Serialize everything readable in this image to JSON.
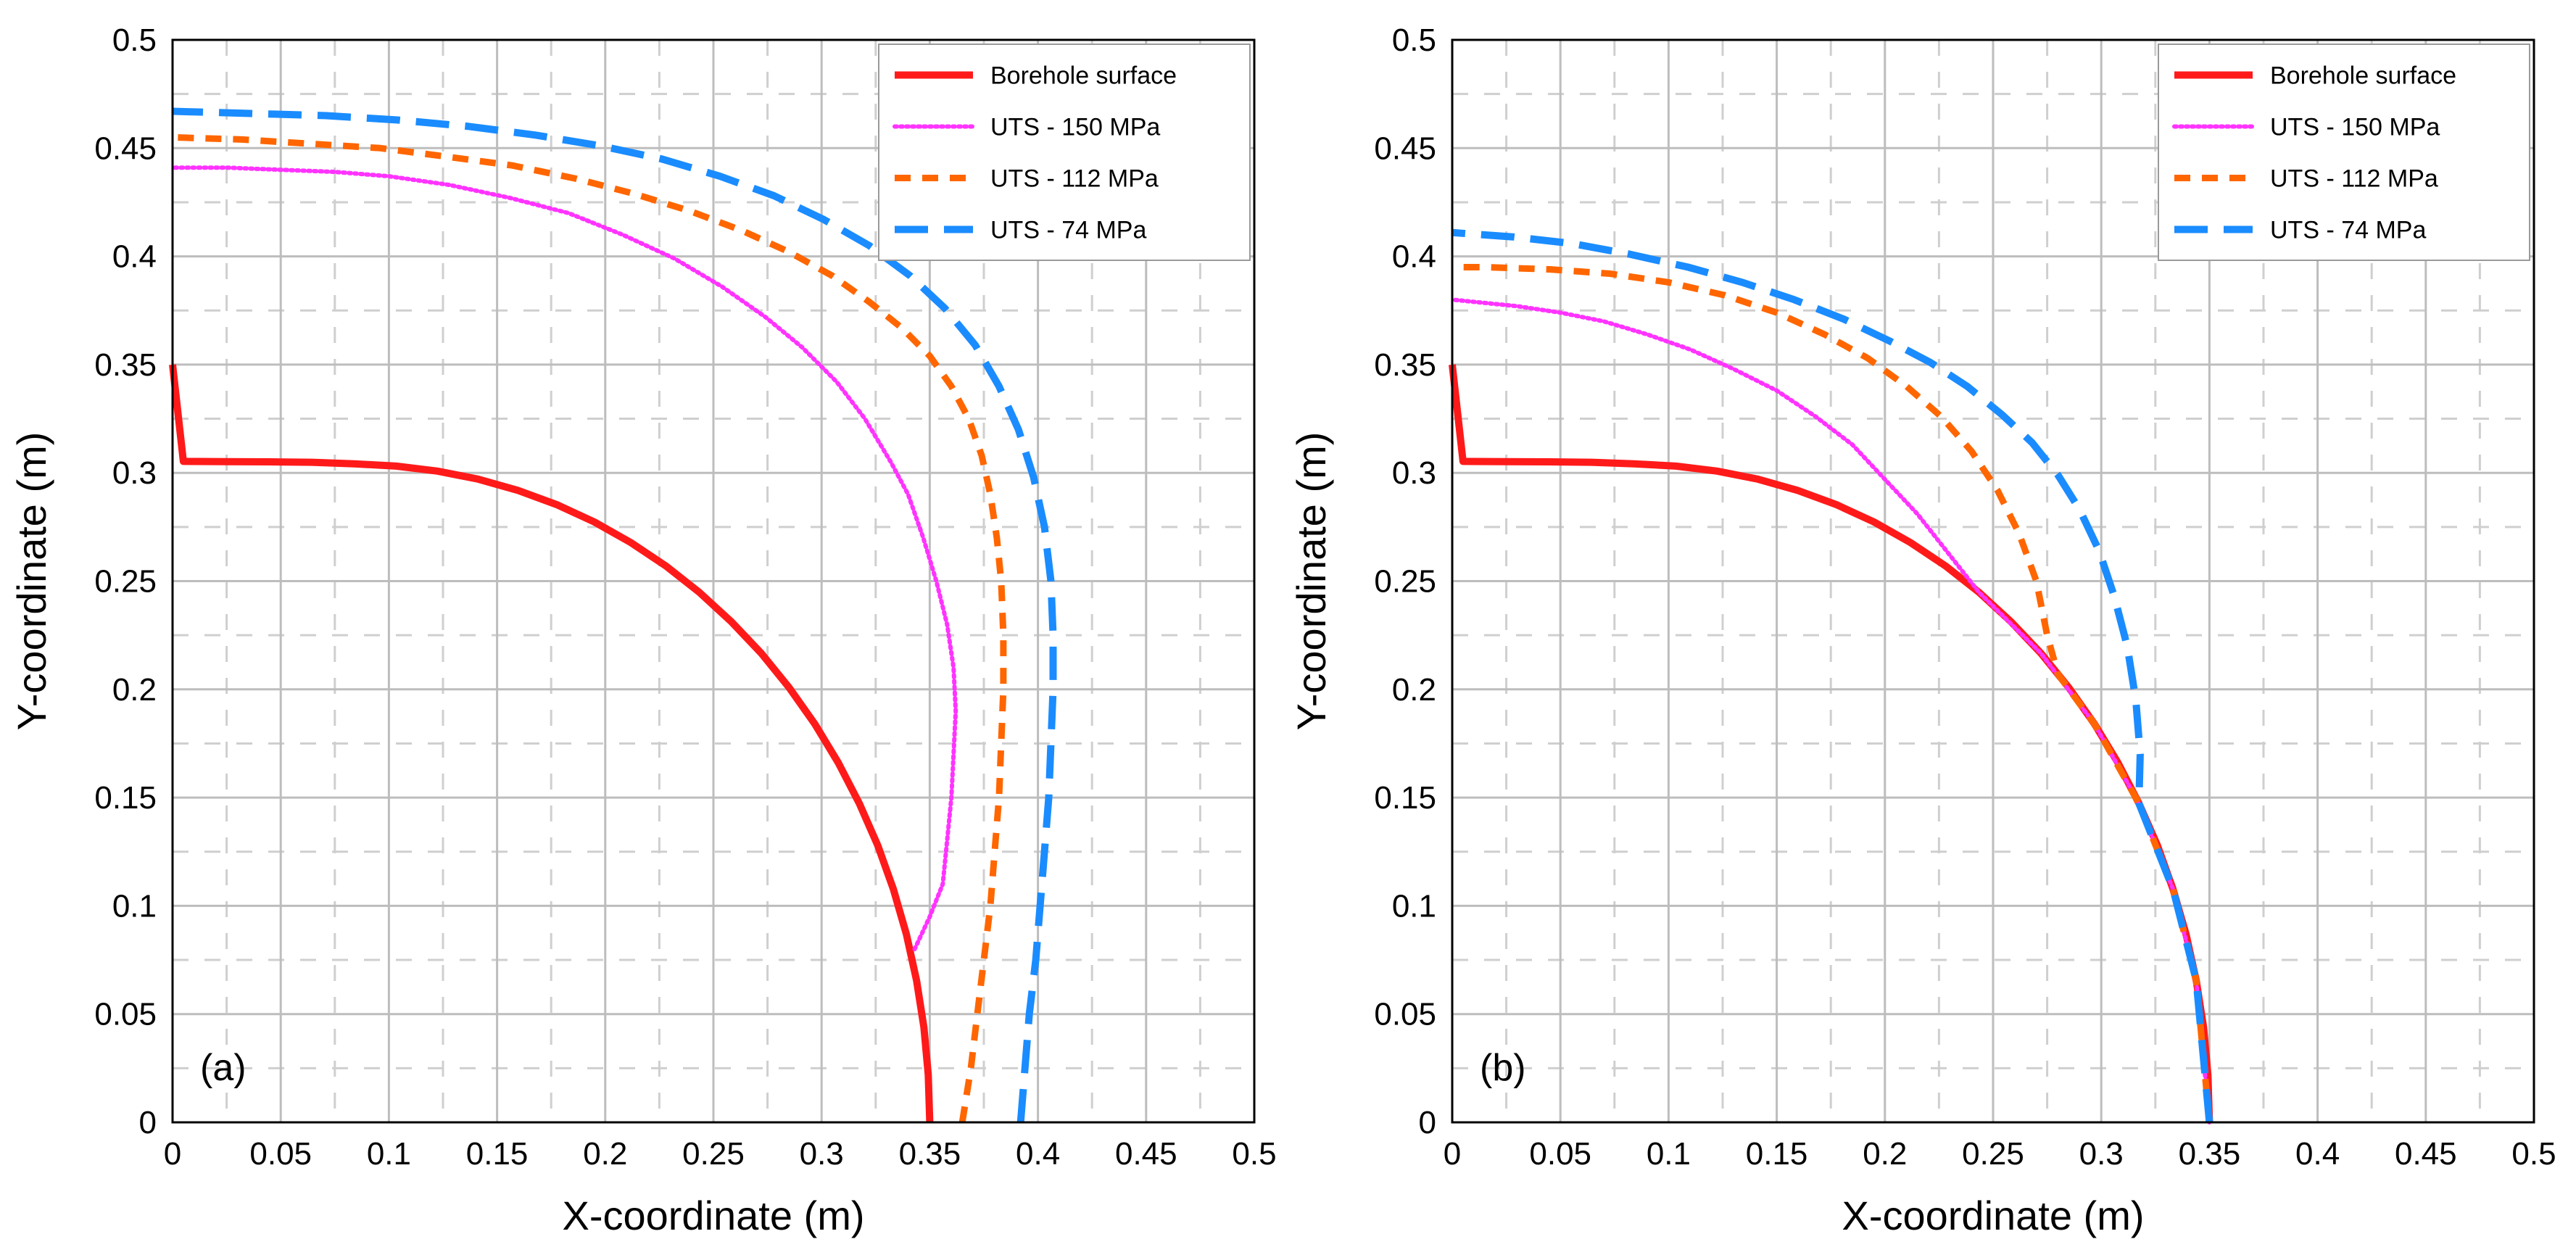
{
  "figure": {
    "panels_order": [
      "a",
      "b"
    ]
  },
  "chart_data": [
    {
      "type": "line",
      "panel_label": "(a)",
      "xlabel": "X-coordinate (m)",
      "ylabel": "Y-coordinate (m)",
      "xlim": [
        0,
        0.5
      ],
      "ylim": [
        0,
        0.5
      ],
      "xticks": [
        "0",
        "0.05",
        "0.1",
        "0.15",
        "0.2",
        "0.25",
        "0.3",
        "0.35",
        "0.4",
        "0.45",
        "0.5"
      ],
      "yticks": [
        "0",
        "0.05",
        "0.1",
        "0.15",
        "0.2",
        "0.25",
        "0.3",
        "0.35",
        "0.4",
        "0.45",
        "0.5"
      ],
      "grid": true,
      "legend_position": "top-right",
      "series": [
        {
          "name": "Borehole surface",
          "style": "solid",
          "color": "#ff1a1a",
          "x": [
            0.35,
            0.3493,
            0.3473,
            0.3439,
            0.3392,
            0.3332,
            0.326,
            0.3174,
            0.3077,
            0.2969,
            0.285,
            0.2721,
            0.2582,
            0.2435,
            0.228,
            0.2118,
            0.195,
            0.1776,
            0.1597,
            0.1413,
            0.1225,
            0.1034,
            0.084,
            0.0644,
            0.0447,
            0.0249,
            0.005,
            0
          ],
          "y": [
            0,
            0.022,
            0.0439,
            0.0655,
            0.0868,
            0.1076,
            0.1278,
            0.1474,
            0.1661,
            0.184,
            0.2008,
            0.2167,
            0.2313,
            0.2448,
            0.257,
            0.2678,
            0.2773,
            0.2853,
            0.2919,
            0.2971,
            0.3008,
            0.3031,
            0.3042,
            0.3049,
            0.3051,
            0.3052,
            0.3053,
            0.35
          ]
        },
        {
          "name": "UTS - 150 MPa",
          "style": "dotted",
          "color": "#ff33ff",
          "x": [
            0.343,
            0.35,
            0.356,
            0.358,
            0.36,
            0.361,
            0.362,
            0.361,
            0.358,
            0.353,
            0.347,
            0.34,
            0.332,
            0.32,
            0.307,
            0.291,
            0.274,
            0.254,
            0.232,
            0.208,
            0.183,
            0.156,
            0.128,
            0.1,
            0.075,
            0.05,
            0.025,
            0
          ],
          "y": [
            0.08,
            0.095,
            0.11,
            0.13,
            0.15,
            0.17,
            0.19,
            0.21,
            0.23,
            0.25,
            0.27,
            0.29,
            0.305,
            0.325,
            0.342,
            0.358,
            0.372,
            0.386,
            0.399,
            0.41,
            0.42,
            0.427,
            0.433,
            0.437,
            0.439,
            0.44,
            0.441,
            0.441
          ]
        },
        {
          "name": "UTS - 112 MPa",
          "style": "dashed",
          "color": "#ff6600",
          "x": [
            0.365,
            0.369,
            0.372,
            0.375,
            0.378,
            0.38,
            0.382,
            0.383,
            0.384,
            0.384,
            0.383,
            0.381,
            0.378,
            0.374,
            0.368,
            0.36,
            0.35,
            0.337,
            0.322,
            0.305,
            0.285,
            0.263,
            0.239,
            0.213,
            0.186,
            0.157,
            0.127,
            0.096,
            0.064,
            0.032,
            0
          ],
          "y": [
            0,
            0.025,
            0.05,
            0.075,
            0.1,
            0.125,
            0.15,
            0.175,
            0.2,
            0.225,
            0.25,
            0.27,
            0.29,
            0.308,
            0.325,
            0.34,
            0.354,
            0.367,
            0.379,
            0.391,
            0.402,
            0.412,
            0.421,
            0.429,
            0.436,
            0.442,
            0.446,
            0.45,
            0.452,
            0.454,
            0.455
          ]
        },
        {
          "name": "UTS - 74 MPa",
          "style": "longdash",
          "color": "#1a8cff",
          "x": [
            0.392,
            0.394,
            0.396,
            0.399,
            0.401,
            0.403,
            0.405,
            0.406,
            0.407,
            0.407,
            0.406,
            0.403,
            0.398,
            0.391,
            0.382,
            0.371,
            0.357,
            0.341,
            0.322,
            0.301,
            0.278,
            0.253,
            0.226,
            0.198,
            0.168,
            0.137,
            0.104,
            0.071,
            0.036,
            0
          ],
          "y": [
            0,
            0.025,
            0.05,
            0.075,
            0.1,
            0.125,
            0.15,
            0.175,
            0.2,
            0.225,
            0.25,
            0.275,
            0.298,
            0.32,
            0.34,
            0.359,
            0.376,
            0.391,
            0.405,
            0.417,
            0.428,
            0.437,
            0.445,
            0.451,
            0.456,
            0.46,
            0.463,
            0.465,
            0.466,
            0.467
          ]
        }
      ]
    },
    {
      "type": "line",
      "panel_label": "(b)",
      "xlabel": "X-coordinate (m)",
      "ylabel": "Y-coordinate (m)",
      "xlim": [
        0,
        0.5
      ],
      "ylim": [
        0,
        0.5
      ],
      "xticks": [
        "0",
        "0.05",
        "0.1",
        "0.15",
        "0.2",
        "0.25",
        "0.3",
        "0.35",
        "0.4",
        "0.45",
        "0.5"
      ],
      "yticks": [
        "0",
        "0.05",
        "0.1",
        "0.15",
        "0.2",
        "0.25",
        "0.3",
        "0.35",
        "0.4",
        "0.45",
        "0.5"
      ],
      "grid": true,
      "legend_position": "top-right",
      "series": [
        {
          "name": "Borehole surface",
          "style": "solid",
          "color": "#ff1a1a",
          "x": [
            0.35,
            0.3493,
            0.3473,
            0.3439,
            0.3392,
            0.3332,
            0.326,
            0.3174,
            0.3077,
            0.2969,
            0.285,
            0.2721,
            0.2582,
            0.2435,
            0.228,
            0.2118,
            0.195,
            0.1776,
            0.1597,
            0.1413,
            0.1225,
            0.1034,
            0.084,
            0.0644,
            0.0447,
            0.0249,
            0.005,
            0
          ],
          "y": [
            0,
            0.022,
            0.0439,
            0.0655,
            0.0868,
            0.1076,
            0.1278,
            0.1474,
            0.1661,
            0.184,
            0.2008,
            0.2167,
            0.2313,
            0.2448,
            0.257,
            0.2678,
            0.2773,
            0.2853,
            0.2919,
            0.2971,
            0.3008,
            0.3031,
            0.3042,
            0.3049,
            0.3051,
            0.3052,
            0.3053,
            0.35
          ]
        },
        {
          "name": "UTS - 150 MPa",
          "style": "dotted",
          "color": "#ff33ff",
          "x": [
            0.35,
            0.3439,
            0.3332,
            0.3174,
            0.2969,
            0.2721,
            0.2435,
            0.23,
            0.215,
            0.2,
            0.185,
            0.168,
            0.15,
            0.13,
            0.11,
            0.09,
            0.07,
            0.05,
            0.03,
            0.01,
            0
          ],
          "y": [
            0,
            0.0655,
            0.1076,
            0.1474,
            0.184,
            0.2167,
            0.2448,
            0.262,
            0.281,
            0.297,
            0.313,
            0.326,
            0.338,
            0.348,
            0.357,
            0.364,
            0.37,
            0.374,
            0.377,
            0.379,
            0.38
          ]
        },
        {
          "name": "UTS - 112 MPa",
          "style": "dashed",
          "color": "#ff6600",
          "x": [
            0.35,
            0.3439,
            0.3332,
            0.3174,
            0.2969,
            0.28,
            0.275,
            0.27,
            0.262,
            0.252,
            0.24,
            0.226,
            0.21,
            0.192,
            0.172,
            0.15,
            0.126,
            0.1,
            0.073,
            0.045,
            0.015,
            0
          ],
          "y": [
            0,
            0.0655,
            0.1076,
            0.1474,
            0.184,
            0.207,
            0.225,
            0.25,
            0.272,
            0.292,
            0.31,
            0.326,
            0.34,
            0.353,
            0.364,
            0.374,
            0.382,
            0.388,
            0.392,
            0.394,
            0.395,
            0.395
          ]
        },
        {
          "name": "UTS - 74 MPa",
          "style": "longdash",
          "color": "#1a8cff",
          "x": [
            0.35,
            0.3439,
            0.3332,
            0.3174,
            0.318,
            0.316,
            0.312,
            0.306,
            0.299,
            0.29,
            0.28,
            0.268,
            0.254,
            0.238,
            0.221,
            0.202,
            0.181,
            0.158,
            0.134,
            0.109,
            0.082,
            0.055,
            0.028,
            0
          ],
          "y": [
            0,
            0.0655,
            0.1076,
            0.1474,
            0.17,
            0.195,
            0.22,
            0.243,
            0.264,
            0.283,
            0.299,
            0.314,
            0.327,
            0.34,
            0.351,
            0.361,
            0.371,
            0.38,
            0.388,
            0.395,
            0.401,
            0.406,
            0.409,
            0.411
          ]
        }
      ]
    }
  ]
}
